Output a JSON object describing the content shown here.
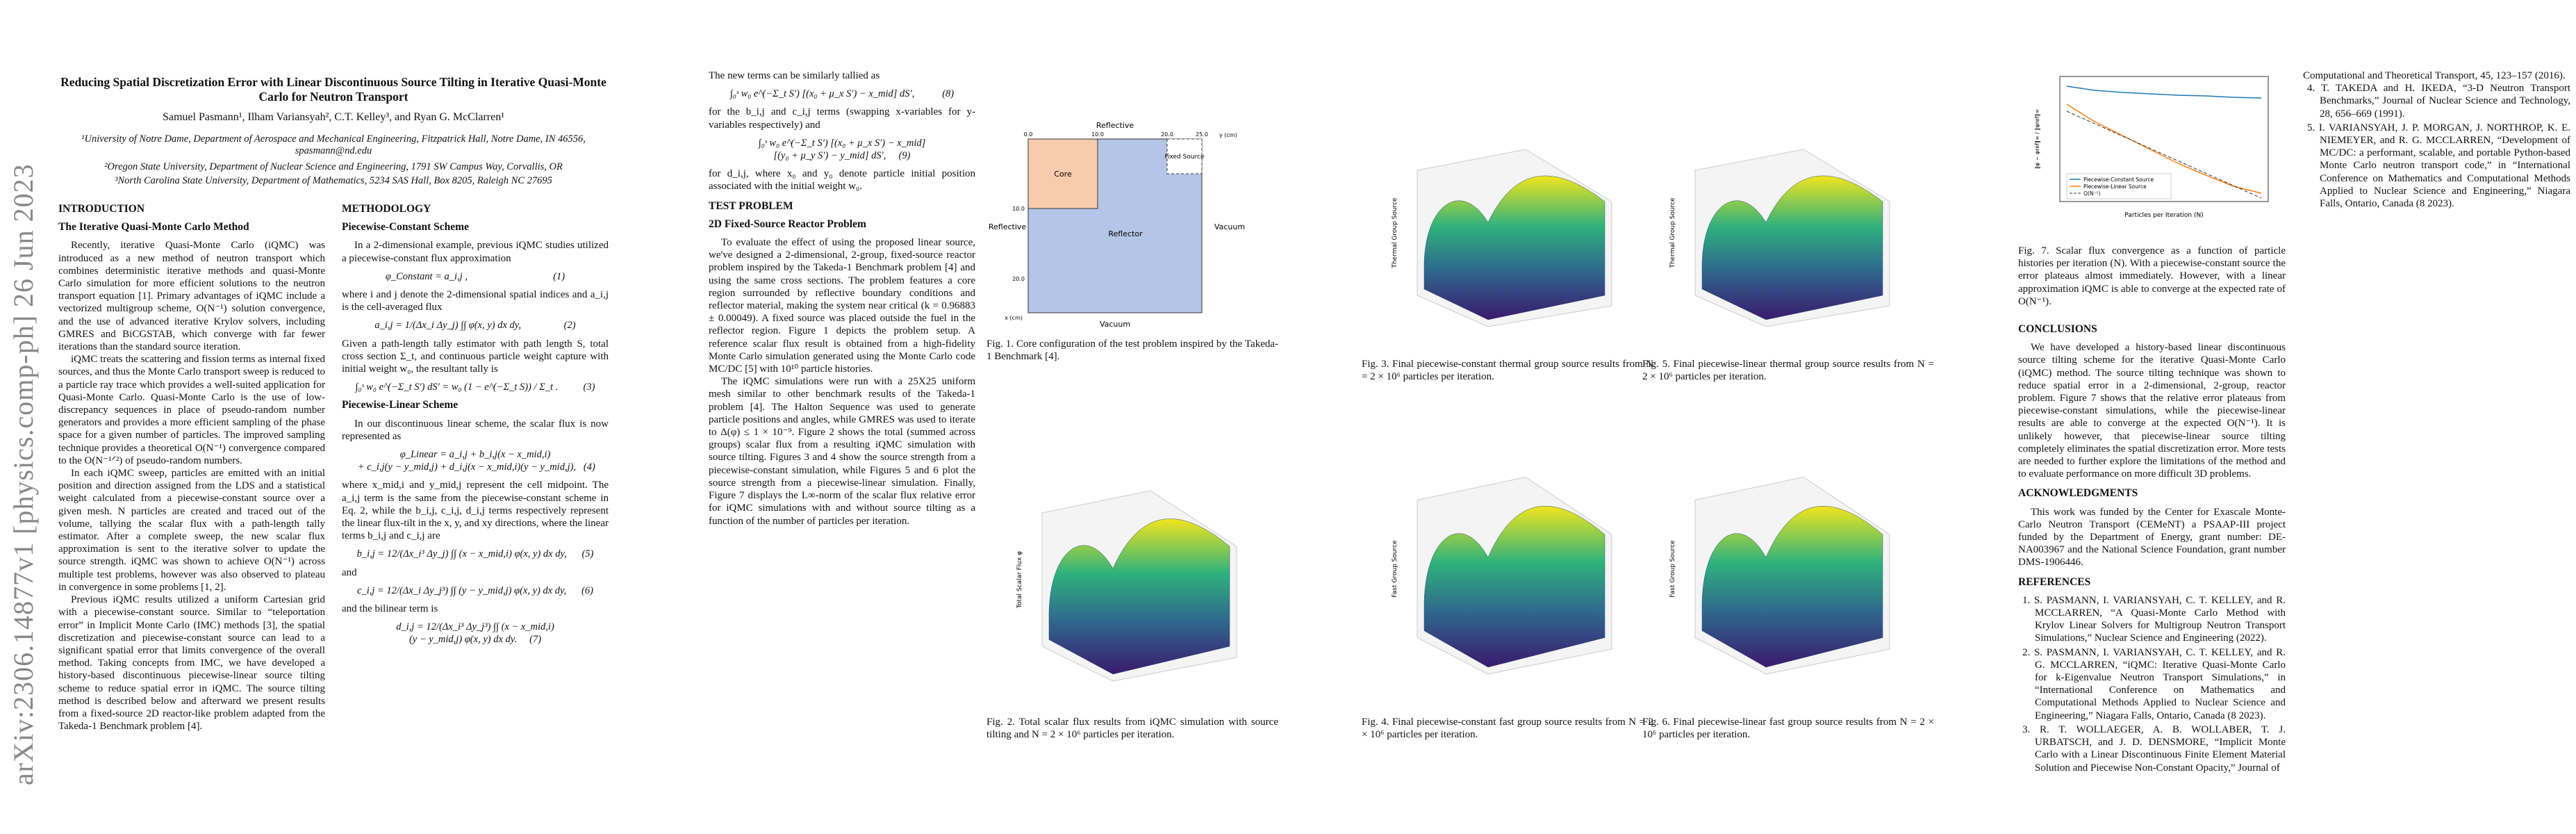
{
  "stamp": "arXiv:2306.14877v1  [physics.comp-ph]  26 Jun 2023",
  "header": {
    "title": "Reducing Spatial Discretization Error with Linear Discontinuous Source Tilting in Iterative Quasi-Monte Carlo for Neutron Transport",
    "authors": "Samuel Pasmann¹, Ilham Variansyah², C.T. Kelley³, and Ryan G. McClarren¹",
    "affiliations": [
      "¹University of Notre Dame, Department of Aerospace and Mechanical Engineering, Fitzpatrick Hall, Notre Dame, IN 46556, spasmann@nd.edu",
      "²Oregon State University, Department of Nuclear Science and Engineering, 1791 SW Campus Way, Corvallis, OR",
      "³North Carolina State University, Department of Mathematics, 5234 SAS Hall, Box 8205, Raleigh NC 27695"
    ]
  },
  "columns": [
    {
      "blocks": [
        {
          "kind": "sec",
          "text": "INTRODUCTION"
        },
        {
          "kind": "sub",
          "text": "The Iterative Quasi-Monte Carlo Method"
        },
        {
          "kind": "para",
          "text": "Recently, iterative Quasi-Monte Carlo (iQMC) was introduced as a new method of neutron transport which combines deterministic iterative methods and quasi-Monte Carlo simulation for more efficient solutions to the neutron transport equation [1]. Primary advantages of iQMC include a vectorized multigroup scheme, O(N⁻¹) solution convergence, and the use of advanced iterative Krylov solvers, including GMRES and BiCGSTAB, which converge with far fewer iterations than the standard source iteration."
        },
        {
          "kind": "para",
          "text": "iQMC treats the scattering and fission terms as internal fixed sources, and thus the Monte Carlo transport sweep is reduced to a particle ray trace which provides a well-suited application for Quasi-Monte Carlo. Quasi-Monte Carlo is the use of low-discrepancy sequences in place of pseudo-random number generators and provides a more efficient sampling of the phase space for a given number of particles. The improved sampling technique provides a theoretical O(N⁻¹) convergence compared to the O(N⁻¹ᐟ²) of pseudo-random numbers."
        },
        {
          "kind": "para",
          "text": "In each iQMC sweep, particles are emitted with an initial position and direction assigned from the LDS and a statistical weight calculated from a piecewise-constant source over a given mesh. N particles are created and traced out of the volume, tallying the scalar flux with a path-length tally estimator. After a complete sweep, the new scalar flux approximation is sent to the iterative solver to update the source strength. iQMC was shown to achieve O(N⁻¹) across multiple test problems, however was also observed to plateau in convergence in some problems [1, 2]."
        },
        {
          "kind": "para",
          "text": "Previous iQMC results utilized a uniform Cartesian grid with a piecewise-constant source. Similar to “teleportation error” in Implicit Monte Carlo (IMC) methods [3], the spatial discretization and piecewise-constant source can lead to a significant spatial error that limits convergence of the overall method. Taking concepts from IMC, we have developed a history-based discontinuous piecewise-linear source tilting scheme to reduce spatial error in iQMC. The source tilting method is described below and afterward we present results from a fixed-source 2D reactor-like problem adapted from the Takeda-1 Benchmark problem [4]."
        }
      ]
    },
    {
      "blocks": [
        {
          "kind": "sec",
          "text": "METHODOLOGY"
        },
        {
          "kind": "sub",
          "text": "Piecewise-Constant Scheme"
        },
        {
          "kind": "para",
          "text": "In a 2-dimensional example, previous iQMC studies utilized a piecewise-constant flux approximation"
        },
        {
          "kind": "eq",
          "text": "φ_Constant = a_i,j ,                                  (1)"
        },
        {
          "kind": "noi",
          "text": "where i and j denote the 2-dimensional spatial indices and a_i,j is the cell-averaged flux"
        },
        {
          "kind": "eq",
          "text": "a_i,j = 1/(Δx_i Δy_j) ∫∫ φ(x, y) dx dy,                 (2)"
        },
        {
          "kind": "noi",
          "text": "Given a path-length tally estimator with path length S, total cross section Σ_t, and continuous particle weight capture with initial weight w₀, the resultant tally is"
        },
        {
          "kind": "eq",
          "text": "∫₀ˢ w₀ e^(−Σ_t S′) dS′ = w₀ (1 − e^(−Σ_t S)) / Σ_t .          (3)"
        },
        {
          "kind": "sub",
          "text": "Piecewise-Linear Scheme"
        },
        {
          "kind": "para",
          "text": "In our discontinuous linear scheme, the scalar flux is now represented as"
        },
        {
          "kind": "eq",
          "text": "φ_Linear = a_i,j + b_i,j(x − x_mid,i)\n + c_i,j(y − y_mid,j) + d_i,j(x − x_mid,i)(y − y_mid,j),   (4)"
        },
        {
          "kind": "noi",
          "text": "where x_mid,i and y_mid,j represent the cell midpoint. The a_i,j term is the same from the piecewise-constant scheme in Eq. 2, while the b_i,j, c_i,j, d_i,j terms respectively represent the linear flux-tilt in the x, y, and xy directions, where the linear terms b_i,j and c_i,j are"
        },
        {
          "kind": "eq",
          "text": "b_i,j = 12/(Δx_i³ Δy_j) ∫∫ (x − x_mid,i) φ(x, y) dx dy,      (5)"
        },
        {
          "kind": "noi",
          "text": "and"
        },
        {
          "kind": "eq",
          "text": "c_i,j = 12/(Δx_i Δy_j³) ∫∫ (y − y_mid,j) φ(x, y) dx dy,      (6)"
        },
        {
          "kind": "noi",
          "text": "and the bilinear term is"
        },
        {
          "kind": "eq",
          "text": "d_i,j = 12/(Δx_i³ Δy_j³) ∫∫ (x − x_mid,i)\n(y − y_mid,j) φ(x, y) dx dy.     (7)"
        }
      ]
    },
    {
      "blocks": [
        {
          "kind": "noi",
          "text": "The new terms can be similarly tallied as"
        },
        {
          "kind": "eq",
          "text": "∫₀ˢ w₀ e^(−Σ_t S′) [(x₀ + μ_x S′) − x_mid] dS′,           (8)"
        },
        {
          "kind": "noi",
          "text": "for the b_i,j and c_i,j terms (swapping x-variables for y-variables respectively) and"
        },
        {
          "kind": "eq",
          "text": "∫₀ˢ w₀ e^(−Σ_t S′) [(x₀ + μ_x S′) − x_mid]\n[(y₀ + μ_y S′) − y_mid] dS′,     (9)"
        },
        {
          "kind": "noi",
          "text": "for d_i,j, where x₀ and y₀ denote particle initial position associated with the initial weight w₀."
        },
        {
          "kind": "sec",
          "text": "TEST PROBLEM"
        },
        {
          "kind": "sub",
          "text": "2D Fixed-Source Reactor Problem"
        },
        {
          "kind": "para",
          "text": "To evaluate the effect of using the proposed linear source, we've designed a 2-dimensional, 2-group, fixed-source reactor problem inspired by the Takeda-1 Benchmark problem [4] and using the same cross sections. The problem features a core region surrounded by reflective boundary conditions and reflector material, making the system near critical (k = 0.96883 ± 0.00049). A fixed source was placed outside the fuel in the reflector region. Figure 1 depicts the problem setup. A reference scalar flux result is obtained from a high-fidelity Monte Carlo simulation generated using the Monte Carlo code MC/DC [5] with 10¹⁰ particle histories."
        },
        {
          "kind": "para",
          "text": "The iQMC simulations were run with a 25X25 uniform mesh similar to other benchmark results of the Takeda-1 problem [4]. The Halton Sequence was used to generate particle positions and angles, while GMRES was used to iterate to Δ(φ) ≤ 1 × 10⁻⁹. Figure 2 shows the total (summed across groups) scalar flux from a resulting iQMC simulation with source tilting. Figures 3 and 4 show the source strength from a piecewise-constant simulation, while Figures 5 and 6 plot the source strength from a piecewise-linear simulation. Finally, Figure 7 displays the L∞-norm of the scalar flux relative error for iQMC simulations with and without source tilting as a function of the number of particles per iteration."
        }
      ]
    },
    {
      "blocks": [
        {
          "kind": "sec",
          "text": "CONCLUSIONS"
        },
        {
          "kind": "para",
          "text": "We have developed a history-based linear discontinuous source tilting scheme for the iterative Quasi-Monte Carlo (iQMC) method. The source tilting technique was shown to reduce spatial error in a 2-dimensional, 2-group, reactor problem. Figure 7 shows that the relative error plateaus from piecewise-constant simulations, while the piecewise-linear results are able to converge at the expected O(N⁻¹). It is unlikely however, that piecewise-linear source tilting completely eliminates the spatial discretization error. More tests are needed to further explore the limitations of the method and to evaluate performance on more difficult 3D problems."
        },
        {
          "kind": "sec",
          "text": "ACKNOWLEDGMENTS"
        },
        {
          "kind": "para",
          "text": "This work was funded by the Center for Exascale Monte-Carlo Neutron Transport (CEMeNT) a PSAAP-III project funded by the Department of Energy, grant number: DE-NA003967 and the National Science Foundation, grant number DMS-1906446."
        },
        {
          "kind": "sec",
          "text": "REFERENCES"
        },
        {
          "kind": "ref",
          "text": "1. S. PASMANN, I. VARIANSYAH, C. T. KELLEY, and R. MCCLARREN, “A Quasi-Monte Carlo Method with Krylov Linear Solvers for Multigroup Neutron Transport Simulations,” Nuclear Science and Engineering (2022)."
        },
        {
          "kind": "ref",
          "text": "2. S. PASMANN, I. VARIANSYAH, C. T. KELLEY, and R. G. MCCLARREN, “iQMC: Iterative Quasi-Monte Carlo for k-Eigenvalue Neutron Transport Simulations,” in “International Conference on Mathematics and Computational Methods Applied to Nuclear Science and Engineering,” Niagara Falls, Ontario, Canada (8 2023)."
        },
        {
          "kind": "ref",
          "text": "3. R. T. WOLLAEGER, A. B. WOLLABER, T. J. URBATSCH, and J. D. DENSMORE, “Implicit Monte Carlo with a Linear Discontinuous Finite Element Material Solution and Piecewise Non-Constant Opacity,” Journal of"
        }
      ]
    },
    {
      "blocks": [
        {
          "kind": "refc",
          "text": "Computational and Theoretical Transport, 45, 123–157 (2016)."
        },
        {
          "kind": "ref",
          "text": "4. T. TAKEDA and H. IKEDA, “3-D Neutron Transport Benchmarks,” Journal of Nuclear Science and Technology, 28, 656–669 (1991)."
        },
        {
          "kind": "ref",
          "text": "5. I. VARIANSYAH, J. P. MORGAN, J. NORTHROP, K. E. NIEMEYER, and R. G. MCCLARREN, “Development of MC/DC: a performant, scalable, and portable Python-based Monte Carlo neutron transport code,” in “International Conference on Mathematics and Computational Methods Applied to Nuclear Science and Engineering,” Niagara Falls, Ontario, Canada (8 2023)."
        }
      ]
    }
  ],
  "figures": {
    "fig1": {
      "caption": "Fig. 1. Core configuration of the test problem inspired by the Takeda-1 Benchmark [4].",
      "labels": {
        "top": "Reflective",
        "left": "Reflective",
        "right": "Vacuum",
        "bottom": "Vacuum",
        "core": "Core",
        "source": "Fixed Source",
        "reflector": "Reflector",
        "xaxis": "x (cm)",
        "yaxis": "y (cm)"
      },
      "ticks": [
        "0.0",
        "10.0",
        "20.0",
        "25.0"
      ]
    },
    "fig2": {
      "caption": "Fig. 2. Total scalar flux results from iQMC simulation with source tilting and N = 2 × 10⁶ particles per iteration.",
      "zlabel": "Total Scalar Flux φ"
    },
    "fig3": {
      "caption": "Fig. 3. Final piecewise-constant thermal group source results from N = 2 × 10⁶ particles per iteration.",
      "zlabel": "Thermal Group Source"
    },
    "fig4": {
      "caption": "Fig. 4. Final piecewise-constant fast group source results from N = 2 × 10⁶ particles per iteration.",
      "zlabel": "Fast Group Source"
    },
    "fig5": {
      "caption": "Fig. 5. Final piecewise-linear thermal group source results from N = 2 × 10⁶ particles per iteration.",
      "zlabel": "Thermal Group Source"
    },
    "fig6": {
      "caption": "Fig. 6. Final piecewise-linear fast group source results from N = 2 × 10⁶ particles per iteration.",
      "zlabel": "Fast Group Source"
    },
    "fig7": {
      "caption": "Fig. 7. Scalar flux convergence as a function of particle histories per iteration (N). With a piecewise-constant source the error plateaus almost immediately. However, with a linear approximation iQMC is able to converge at the expected rate of O(N⁻¹).",
      "xlabel": "Particles per Iteration (N)",
      "ylabel": "‖φ − φref‖∞ / ‖φref‖∞",
      "legend": [
        "Piecewise-Constant Source",
        "Piecewise-Linear Source",
        "O(N⁻¹)"
      ]
    }
  }
}
